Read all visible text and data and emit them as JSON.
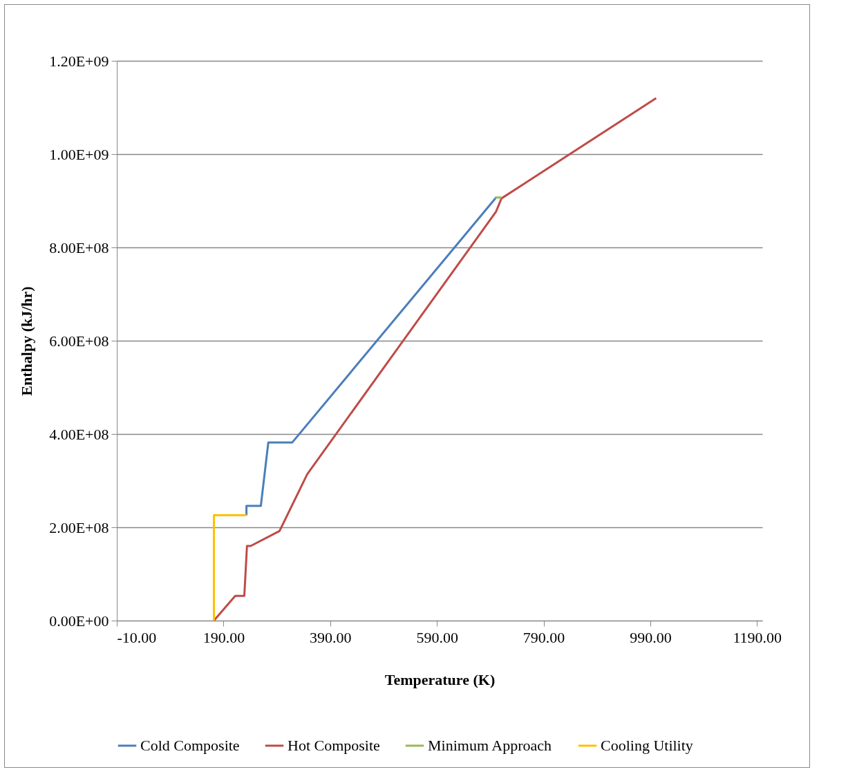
{
  "chart_data": {
    "type": "line",
    "xlabel": "Temperature (K)",
    "ylabel": "Enthalpy (kJ/hr)",
    "xlim": [
      -10,
      1200
    ],
    "ylim": [
      0,
      1200000000
    ],
    "xticks": [
      {
        "value": -10,
        "label": "-10.00"
      },
      {
        "value": 190,
        "label": "190.00"
      },
      {
        "value": 390,
        "label": "390.00"
      },
      {
        "value": 590,
        "label": "590.00"
      },
      {
        "value": 790,
        "label": "790.00"
      },
      {
        "value": 990,
        "label": "990.00"
      },
      {
        "value": 1190,
        "label": "1190.00"
      }
    ],
    "yticks": [
      {
        "value": 0,
        "label": "0.00E+00"
      },
      {
        "value": 200000000,
        "label": "2.00E+08"
      },
      {
        "value": 400000000,
        "label": "4.00E+08"
      },
      {
        "value": 600000000,
        "label": "6.00E+08"
      },
      {
        "value": 800000000,
        "label": "8.00E+08"
      },
      {
        "value": 1000000000,
        "label": "1.00E+09"
      },
      {
        "value": 1200000000,
        "label": "1.20E+09"
      }
    ],
    "grid": "y",
    "legend": "bottom",
    "marker": "none",
    "line_style": "solid",
    "series": [
      {
        "name": "Cold Composite",
        "color": "#4a7ebb",
        "x": [
          233,
          233,
          260,
          274,
          319,
          701
        ],
        "values": [
          226000000,
          246000000,
          246000000,
          382000000,
          382000000,
          907000000
        ]
      },
      {
        "name": "Hot Composite",
        "color": "#be4b48",
        "x": [
          172,
          212,
          229,
          234,
          241,
          295,
          347,
          701,
          711,
          1001
        ],
        "values": [
          0,
          53000000,
          53000000,
          160000000,
          160000000,
          192000000,
          314000000,
          877000000,
          905000000,
          1120000000
        ]
      },
      {
        "name": "Minimum Approach",
        "color": "#98b954",
        "x": [
          699,
          711
        ],
        "values": [
          907000000,
          907000000
        ]
      },
      {
        "name": "Cooling Utility",
        "color": "#ffc000",
        "x": [
          172,
          172,
          233
        ],
        "values": [
          0,
          226000000,
          226000000
        ]
      }
    ]
  }
}
